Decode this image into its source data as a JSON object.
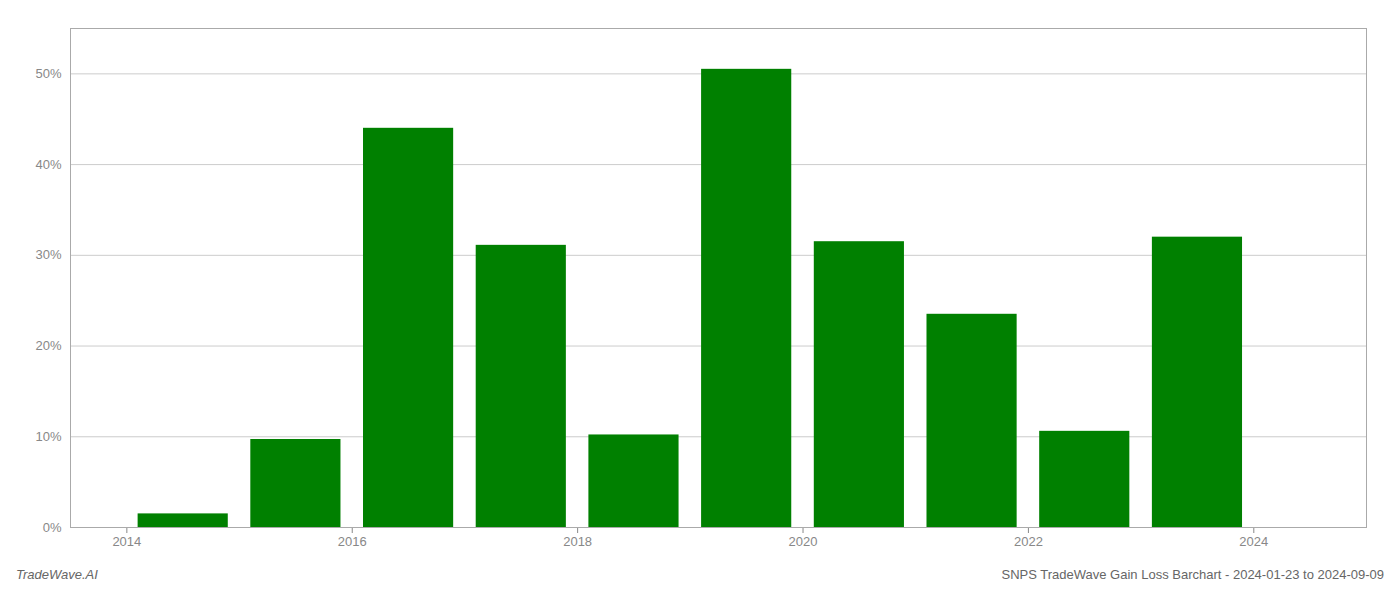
{
  "chart_data": {
    "type": "bar",
    "x": [
      2014.5,
      2015.5,
      2016.5,
      2017.5,
      2018.5,
      2019.5,
      2020.5,
      2021.5,
      2022.5,
      2023.5
    ],
    "values": [
      1.5,
      9.7,
      44.0,
      31.1,
      10.2,
      50.5,
      31.5,
      23.5,
      10.6,
      32.0
    ],
    "color": "#008000",
    "xlim": [
      2013.5,
      2025.0
    ],
    "xticks": [
      2014,
      2016,
      2018,
      2020,
      2022,
      2024
    ],
    "ylim": [
      0,
      55
    ],
    "yticks": [
      {
        "value": 0,
        "label": "0%"
      },
      {
        "value": 10,
        "label": "10%"
      },
      {
        "value": 20,
        "label": "20%"
      },
      {
        "value": 30,
        "label": "30%"
      },
      {
        "value": 40,
        "label": "40%"
      },
      {
        "value": 50,
        "label": "50%"
      }
    ],
    "grid": true,
    "annotations": [
      "TradeWave.AI",
      "SNPS TradeWave Gain Loss Barchart - 2024-01-23 to 2024-09-09"
    ]
  }
}
